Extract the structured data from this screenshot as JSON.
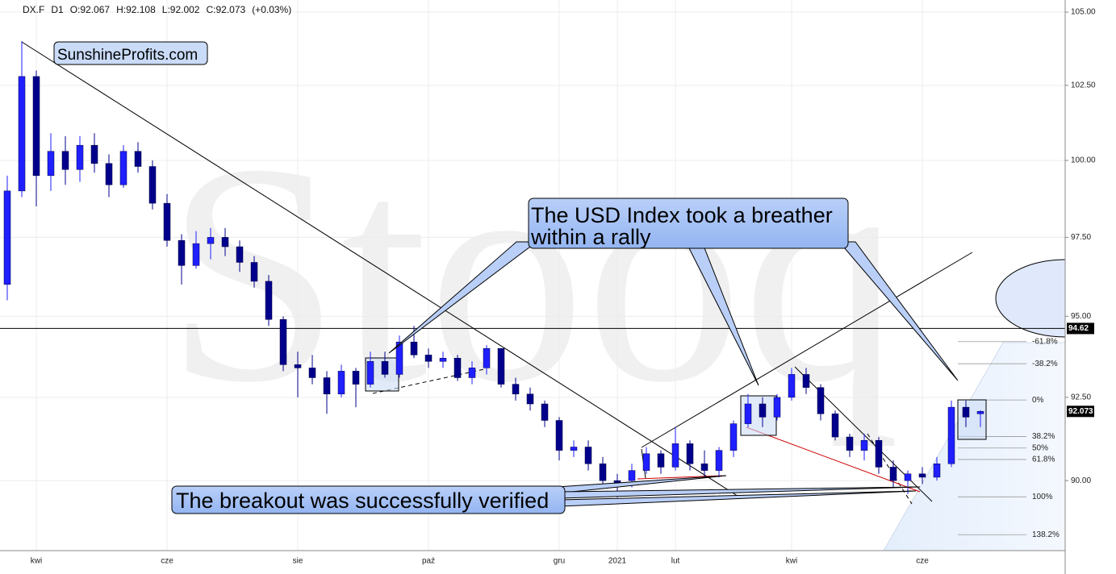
{
  "chart_data": {
    "type": "candlestick",
    "header": [
      "DX.F",
      "D1",
      "O:92.067",
      "H:92.108",
      "L:92.002",
      "C:92.073",
      "(+0.03%)"
    ],
    "annotations": {
      "watermark": "Stooq",
      "brand": "SunshineProfits.com",
      "callout_top": [
        "The USD Index took a breather",
        "within a rally"
      ],
      "callout_bottom": "The breakout was successfully verified"
    },
    "categories": [
      null,
      null,
      "kwi",
      null,
      null,
      null,
      null,
      null,
      null,
      null,
      null,
      "cze",
      null,
      null,
      null,
      null,
      null,
      null,
      null,
      null,
      "sie",
      null,
      null,
      null,
      null,
      null,
      null,
      null,
      null,
      "paź",
      null,
      null,
      null,
      null,
      null,
      null,
      null,
      null,
      "gru",
      null,
      null,
      null,
      "2021",
      null,
      null,
      null,
      "lut",
      null,
      null,
      null,
      null,
      null,
      null,
      null,
      "kwi",
      null,
      null,
      null,
      null,
      null,
      null,
      null,
      null,
      "cze",
      null,
      null,
      null,
      null
    ],
    "open": [
      96.0,
      99.0,
      102.8,
      99.5,
      100.3,
      99.7,
      100.5,
      99.9,
      99.2,
      100.3,
      99.8,
      98.6,
      97.4,
      96.6,
      97.3,
      97.5,
      97.2,
      96.7,
      96.1,
      94.9,
      93.5,
      93.4,
      93.1,
      92.6,
      93.3,
      92.9,
      93.6,
      93.2,
      94.2,
      93.8,
      93.6,
      93.7,
      93.1,
      93.4,
      94.0,
      92.9,
      92.6,
      92.3,
      91.8,
      90.9,
      91.0,
      90.5,
      90.0,
      90.0,
      90.3,
      90.8,
      90.4,
      91.1,
      90.5,
      90.3,
      90.9,
      91.7,
      92.3,
      91.9,
      92.5,
      93.2,
      92.8,
      92.0,
      91.3,
      90.9,
      91.2,
      90.4,
      90.0,
      90.2,
      90.1,
      90.5,
      92.2,
      92.0
    ],
    "high": [
      99.5,
      104.0,
      103.0,
      100.9,
      100.8,
      100.8,
      100.9,
      100.2,
      100.5,
      100.6,
      100.0,
      98.9,
      97.6,
      97.7,
      97.8,
      97.8,
      97.4,
      96.9,
      96.3,
      95.0,
      93.9,
      93.8,
      93.3,
      93.5,
      93.4,
      93.9,
      93.9,
      94.4,
      94.7,
      94.0,
      93.9,
      93.8,
      93.6,
      94.1,
      94.0,
      93.1,
      92.8,
      92.4,
      91.9,
      91.2,
      91.2,
      90.7,
      90.2,
      90.5,
      91.0,
      90.9,
      91.6,
      91.2,
      90.9,
      91.0,
      91.8,
      92.6,
      92.5,
      92.6,
      93.4,
      93.4,
      92.9,
      92.1,
      91.4,
      91.4,
      91.3,
      90.6,
      90.3,
      90.4,
      90.7,
      92.4,
      92.4,
      92.108
    ],
    "low": [
      95.5,
      98.8,
      98.5,
      99.0,
      99.2,
      99.3,
      99.6,
      98.8,
      99.1,
      99.6,
      98.4,
      97.2,
      96.0,
      96.5,
      96.8,
      96.9,
      96.4,
      95.9,
      94.7,
      93.3,
      92.5,
      92.9,
      92.0,
      92.5,
      92.2,
      92.8,
      93.1,
      93.1,
      93.7,
      93.4,
      93.4,
      93.0,
      92.9,
      93.2,
      92.8,
      92.4,
      92.1,
      91.6,
      90.6,
      90.7,
      90.3,
      89.8,
      89.5,
      89.8,
      90.2,
      90.2,
      90.3,
      90.3,
      90.1,
      90.1,
      90.7,
      91.6,
      91.6,
      91.8,
      92.4,
      92.6,
      91.8,
      91.2,
      90.7,
      90.6,
      90.2,
      89.8,
      89.6,
      89.9,
      90.0,
      90.4,
      91.6,
      91.6
    ],
    "close": [
      99.0,
      102.8,
      99.5,
      100.3,
      99.7,
      100.5,
      99.9,
      99.2,
      100.3,
      99.8,
      98.6,
      97.4,
      96.6,
      97.3,
      97.5,
      97.2,
      96.7,
      96.1,
      94.9,
      93.5,
      93.4,
      93.1,
      92.6,
      93.3,
      92.9,
      93.6,
      93.2,
      94.2,
      93.8,
      93.6,
      93.7,
      93.1,
      93.4,
      94.0,
      92.9,
      92.6,
      92.3,
      91.8,
      90.9,
      91.0,
      90.5,
      90.0,
      89.9,
      90.3,
      90.8,
      90.4,
      91.1,
      90.5,
      90.3,
      90.9,
      91.7,
      92.3,
      91.9,
      92.5,
      93.2,
      92.8,
      92.0,
      91.3,
      90.9,
      91.2,
      90.4,
      90.0,
      90.2,
      90.1,
      90.5,
      92.2,
      91.9,
      92.073
    ],
    "up_color": "#1f1fff",
    "down_color": "#00008b",
    "log_scale": true,
    "ylim": [
      87.95,
      105.42
    ],
    "yticks": [
      {
        "value": 90,
        "label": "90.00"
      },
      {
        "value": 92.5,
        "label": "92.50"
      },
      {
        "value": 95,
        "label": "95.00"
      },
      {
        "value": 97.5,
        "label": "97.50"
      },
      {
        "value": 100,
        "label": "100.00"
      },
      {
        "value": 102.5,
        "label": "102.50"
      },
      {
        "value": 105,
        "label": "105.00"
      }
    ],
    "grid": true,
    "hline": 94.62,
    "last_price": 92.073,
    "fib": {
      "high": 92.42,
      "low": 89.52,
      "levels": [
        {
          "value": -61.8,
          "label": "-61.8%"
        },
        {
          "value": -38.2,
          "label": "-38.2%"
        },
        {
          "value": 0,
          "label": "0%"
        },
        {
          "value": 38.2,
          "label": "38.2%"
        },
        {
          "value": 50,
          "label": "50%"
        },
        {
          "value": 61.8,
          "label": "61.8%"
        },
        {
          "value": 100,
          "label": "100%"
        },
        {
          "value": 138.2,
          "label": "138.2%"
        }
      ]
    }
  }
}
